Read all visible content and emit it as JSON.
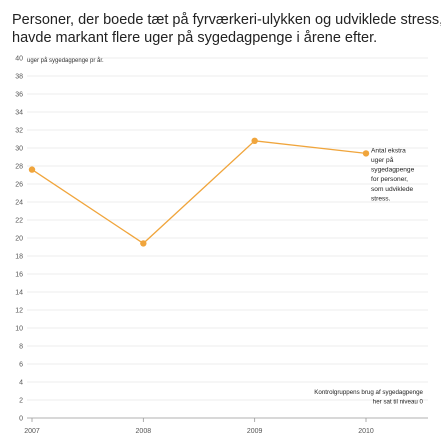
{
  "chart_data": {
    "type": "line",
    "title_lines": [
      "Personer, der boede tæt på fyrværkeri-ulykken og udviklede stress,",
      "havde markant flere uger på sygedagpenge i årene efter."
    ],
    "ylabel": "uger på sygedagpenge pr år.",
    "xlabel": "",
    "x": [
      "2007",
      "2008",
      "2009",
      "2010"
    ],
    "y_ticks": [
      0,
      2,
      4,
      6,
      8,
      10,
      12,
      14,
      16,
      18,
      20,
      22,
      24,
      26,
      28,
      30,
      32,
      34,
      36,
      38,
      40
    ],
    "ylim": [
      0,
      40
    ],
    "grid": true,
    "series": [
      {
        "values": [
          27.6,
          19.4,
          30.8,
          29.4
        ],
        "color": "#f0a53c"
      }
    ],
    "annotations": {
      "series_label_lines": [
        "Antal ekstra",
        "uger på",
        "sygedagpenge",
        "for personer,",
        "som udviklede",
        "stress."
      ],
      "baseline_note_lines": [
        "Kontrolgruppens brug af sygedagpenge",
        "her sat til niveau 0"
      ]
    },
    "colors": {
      "grid": "#e9e9e9",
      "axis": "#999999",
      "text": "#222222",
      "muted": "#555555"
    }
  }
}
